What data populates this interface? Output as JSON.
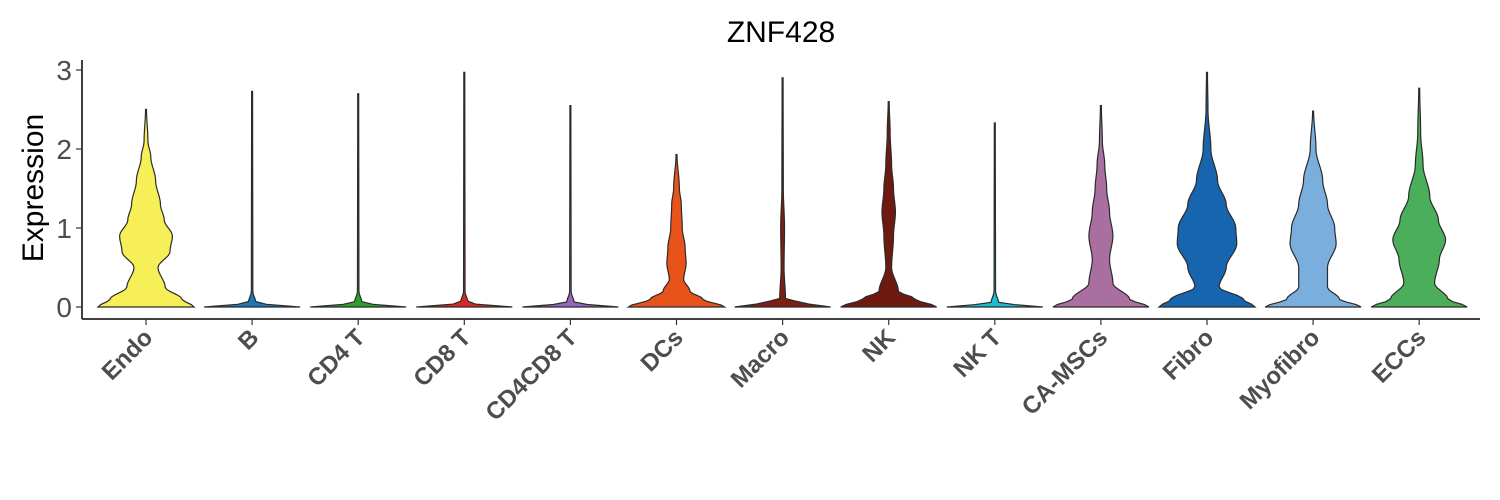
{
  "chart_data": {
    "type": "violin",
    "title": "ZNF428",
    "xlabel": "",
    "ylabel": "Expression",
    "ylim": [
      -0.15,
      3.1
    ],
    "yticks": [
      "0",
      "1",
      "2",
      "3"
    ],
    "grid": false,
    "legend": "none",
    "categories": [
      "Endo",
      "B",
      "CD4 T",
      "CD8 T",
      "CD4CD8 T",
      "DCs",
      "Macro",
      "NK",
      "NK T",
      "CA-MSCs",
      "Fibro",
      "Myofibro",
      "ECCs"
    ],
    "colors": [
      "#F7EF57",
      "#1F77B4",
      "#2CA02C",
      "#D62728",
      "#9467BD",
      "#E8531A",
      "#7A1F12",
      "#6E1A10",
      "#17BECF",
      "#A86FA0",
      "#1865AF",
      "#7AAEDD",
      "#4AAE5A"
    ],
    "series": [
      {
        "category": "Endo",
        "max": 2.5,
        "profile": [
          [
            0,
            1.0
          ],
          [
            0.1,
            0.75
          ],
          [
            0.25,
            0.4
          ],
          [
            0.5,
            0.25
          ],
          [
            0.7,
            0.5
          ],
          [
            0.9,
            0.55
          ],
          [
            1.1,
            0.38
          ],
          [
            1.3,
            0.3
          ],
          [
            1.6,
            0.2
          ],
          [
            1.9,
            0.1
          ],
          [
            2.1,
            0.04
          ],
          [
            2.5,
            0.01
          ]
        ]
      },
      {
        "category": "B",
        "max": 2.73,
        "profile": [
          [
            0,
            1.0
          ],
          [
            0.05,
            0.08
          ],
          [
            0.2,
            0.015
          ],
          [
            2.73,
            0.01
          ]
        ]
      },
      {
        "category": "CD4 T",
        "max": 2.7,
        "profile": [
          [
            0,
            1.0
          ],
          [
            0.05,
            0.08
          ],
          [
            0.2,
            0.015
          ],
          [
            2.7,
            0.01
          ]
        ]
      },
      {
        "category": "CD8 T",
        "max": 2.97,
        "profile": [
          [
            0,
            1.0
          ],
          [
            0.05,
            0.08
          ],
          [
            0.2,
            0.015
          ],
          [
            2.97,
            0.01
          ]
        ]
      },
      {
        "category": "CD4CD8 T",
        "max": 2.55,
        "profile": [
          [
            0,
            1.0
          ],
          [
            0.05,
            0.08
          ],
          [
            0.2,
            0.015
          ],
          [
            2.55,
            0.01
          ]
        ]
      },
      {
        "category": "DCs",
        "max": 1.93,
        "profile": [
          [
            0,
            1.0
          ],
          [
            0.1,
            0.55
          ],
          [
            0.2,
            0.28
          ],
          [
            0.35,
            0.15
          ],
          [
            0.55,
            0.2
          ],
          [
            0.75,
            0.18
          ],
          [
            1.0,
            0.12
          ],
          [
            1.3,
            0.1
          ],
          [
            1.5,
            0.06
          ],
          [
            1.93,
            0.01
          ]
        ]
      },
      {
        "category": "Macro",
        "max": 2.9,
        "profile": [
          [
            0,
            1.0
          ],
          [
            0.05,
            0.45
          ],
          [
            0.1,
            0.06
          ],
          [
            0.5,
            0.03
          ],
          [
            1.0,
            0.04
          ],
          [
            1.5,
            0.015
          ],
          [
            2.9,
            0.01
          ]
        ]
      },
      {
        "category": "NK",
        "max": 2.6,
        "profile": [
          [
            0,
            1.0
          ],
          [
            0.1,
            0.55
          ],
          [
            0.2,
            0.2
          ],
          [
            0.5,
            0.06
          ],
          [
            0.9,
            0.1
          ],
          [
            1.2,
            0.14
          ],
          [
            1.5,
            0.1
          ],
          [
            1.8,
            0.06
          ],
          [
            2.2,
            0.03
          ],
          [
            2.6,
            0.01
          ]
        ]
      },
      {
        "category": "NK T",
        "max": 2.33,
        "profile": [
          [
            0,
            1.0
          ],
          [
            0.05,
            0.08
          ],
          [
            0.2,
            0.015
          ],
          [
            2.33,
            0.01
          ]
        ]
      },
      {
        "category": "CA-MSCs",
        "max": 2.55,
        "profile": [
          [
            0,
            1.0
          ],
          [
            0.1,
            0.6
          ],
          [
            0.3,
            0.25
          ],
          [
            0.6,
            0.18
          ],
          [
            0.9,
            0.25
          ],
          [
            1.2,
            0.18
          ],
          [
            1.5,
            0.12
          ],
          [
            1.8,
            0.08
          ],
          [
            2.1,
            0.03
          ],
          [
            2.55,
            0.01
          ]
        ]
      },
      {
        "category": "Fibro",
        "max": 2.97,
        "profile": [
          [
            0,
            1.0
          ],
          [
            0.1,
            0.75
          ],
          [
            0.25,
            0.25
          ],
          [
            0.5,
            0.4
          ],
          [
            0.8,
            0.62
          ],
          [
            1.0,
            0.6
          ],
          [
            1.3,
            0.4
          ],
          [
            1.6,
            0.22
          ],
          [
            2.0,
            0.08
          ],
          [
            2.5,
            0.02
          ],
          [
            2.97,
            0.01
          ]
        ]
      },
      {
        "category": "Myofibro",
        "max": 2.48,
        "profile": [
          [
            0,
            1.0
          ],
          [
            0.1,
            0.55
          ],
          [
            0.25,
            0.3
          ],
          [
            0.5,
            0.3
          ],
          [
            0.8,
            0.48
          ],
          [
            1.0,
            0.45
          ],
          [
            1.3,
            0.3
          ],
          [
            1.6,
            0.2
          ],
          [
            2.0,
            0.06
          ],
          [
            2.48,
            0.01
          ]
        ]
      },
      {
        "category": "ECCs",
        "max": 2.77,
        "profile": [
          [
            0,
            1.0
          ],
          [
            0.1,
            0.6
          ],
          [
            0.3,
            0.32
          ],
          [
            0.6,
            0.42
          ],
          [
            0.85,
            0.55
          ],
          [
            1.1,
            0.4
          ],
          [
            1.4,
            0.22
          ],
          [
            1.8,
            0.08
          ],
          [
            2.2,
            0.03
          ],
          [
            2.77,
            0.01
          ]
        ]
      }
    ]
  }
}
